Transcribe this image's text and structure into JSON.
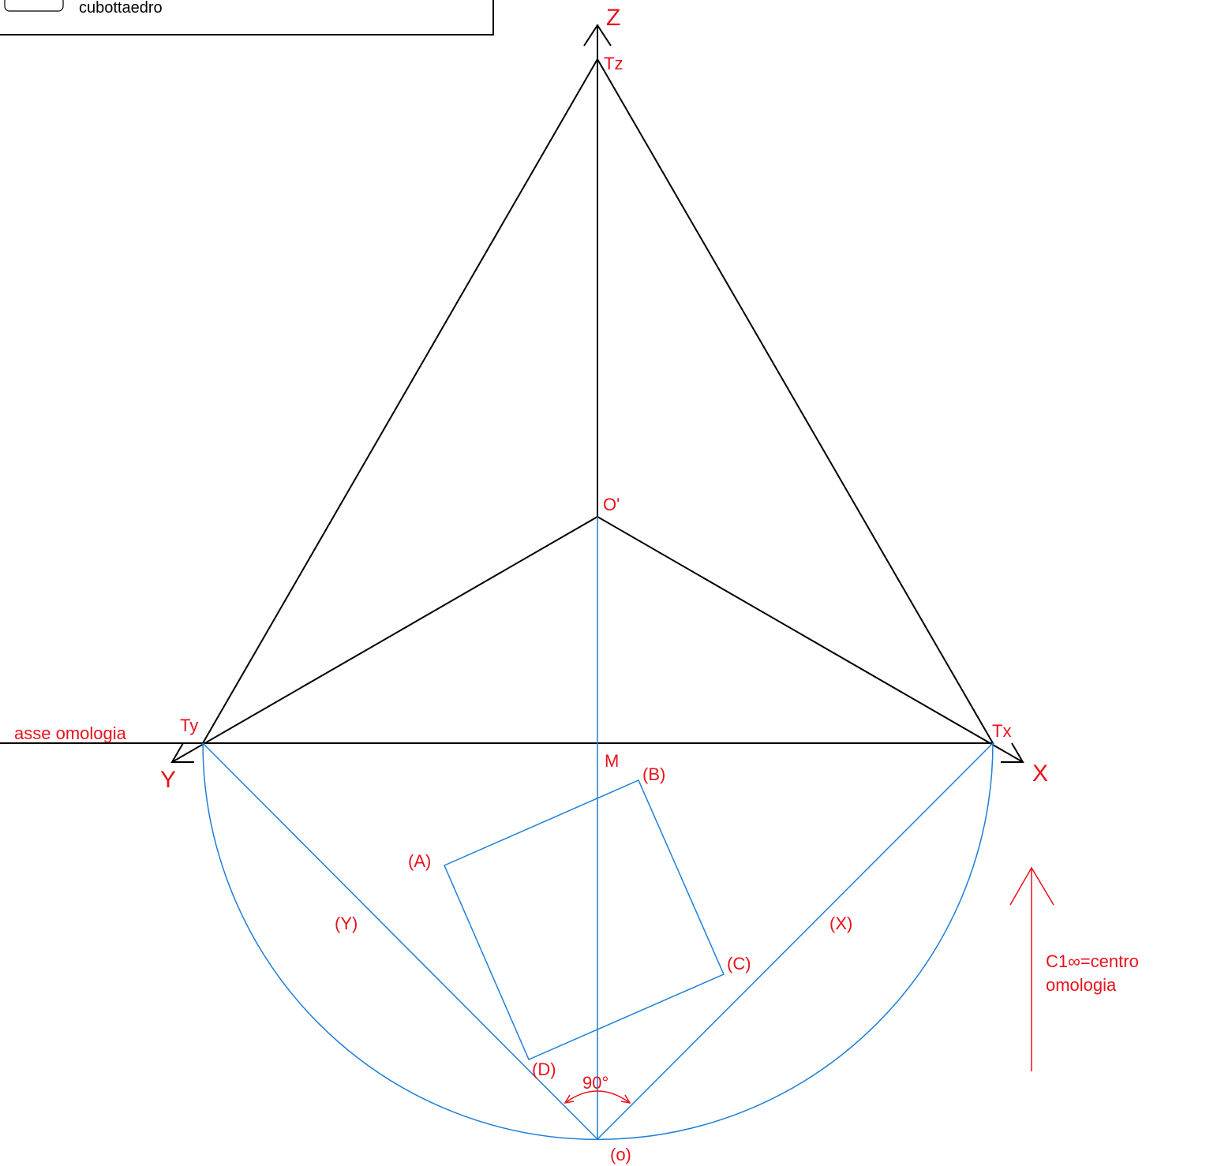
{
  "title_box": {
    "text": "cubottaedro"
  },
  "labels": {
    "z_axis": "Z",
    "tz": "Tz",
    "o_prime": "O'",
    "ty": "Ty",
    "tx": "Tx",
    "y_axis": "Y",
    "x_axis": "X",
    "m": "M",
    "a": "(A)",
    "b": "(B)",
    "c": "(C)",
    "d": "(D)",
    "y_rot": "(Y)",
    "x_rot": "(X)",
    "o_rot": "(o)",
    "angle": "90°",
    "axis_homology": "asse omologia"
  },
  "center_note": {
    "lines": [
      "C1∞=centro",
      "omologia"
    ]
  }
}
